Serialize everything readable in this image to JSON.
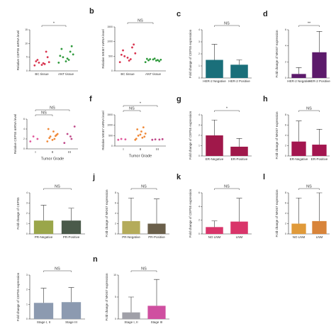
{
  "chart_data": [
    {
      "type": "strip",
      "y_label": "Relative CEP55 mRNA level",
      "categories": [
        "BC tissue",
        "ANT tissue"
      ],
      "colors": [
        "#d8344f",
        "#2f9a3c"
      ],
      "annotations": [
        "*"
      ],
      "ylim": [
        0,
        15
      ],
      "yticks": [
        0,
        5,
        10,
        15
      ],
      "values": [
        [
          2,
          2.5,
          3,
          3.2,
          2.8,
          4,
          5,
          2.2,
          3.5,
          7
        ],
        [
          3,
          4,
          5,
          6,
          4.5,
          8,
          9,
          3.5,
          5.5,
          7
        ]
      ]
    },
    {
      "type": "strip",
      "label": "b",
      "y_label": "Relative MKI67 mRNA level",
      "categories": [
        "BC tissue",
        "ANT tissue"
      ],
      "colors": [
        "#d8344f",
        "#2f9a3c"
      ],
      "annotations": [
        "NS"
      ],
      "ylim": [
        0,
        1500
      ],
      "yticks": [
        0,
        500,
        1000,
        1500
      ],
      "values": [
        [
          300,
          400,
          500,
          600,
          350,
          700,
          900,
          450,
          550,
          800
        ],
        [
          300,
          350,
          400,
          380,
          420,
          360,
          330,
          390,
          410,
          370
        ]
      ]
    },
    {
      "type": "bar",
      "label": "c",
      "y_label": "Fold change of CEP55 expression",
      "categories": [
        "HER-2 Negative",
        "HER-2 Positive"
      ],
      "colors": [
        "#1a6f7a",
        "#1a6f7a"
      ],
      "annotations": [
        "NS"
      ],
      "ylim": [
        0,
        4
      ],
      "yticks": [
        0,
        1,
        2,
        3,
        4
      ],
      "values": [
        1.5,
        1.1
      ],
      "errors": [
        1.3,
        0.4
      ]
    },
    {
      "type": "bar",
      "label": "d",
      "y_label": "Fold change of MKI67 expression",
      "categories": [
        "HER-2 Negative",
        "HER-2 Positive"
      ],
      "colors": [
        "#5c1a6b",
        "#5c1a6b"
      ],
      "annotations": [
        "**"
      ],
      "ylim": [
        0,
        6
      ],
      "yticks": [
        0,
        2,
        4,
        6
      ],
      "values": [
        0.5,
        3.2
      ],
      "errors": [
        0.8,
        2.6
      ]
    },
    {
      "type": "strip",
      "x_label": "Tumor Grade",
      "y_label": "Relative CEP55 mRNA level",
      "categories": [
        "I",
        "II",
        "III"
      ],
      "colors": [
        "#e0569a",
        "#f08a3a",
        "#c04a8a"
      ],
      "annotations": [
        "NS",
        "NS"
      ],
      "ylim": [
        0,
        6
      ],
      "yticks": [
        0,
        2,
        4,
        6
      ],
      "values": [
        [
          1.5,
          2,
          2.5
        ],
        [
          1.5,
          2,
          2.5,
          3,
          3.5,
          2.2,
          2.8,
          1.8,
          4,
          2.6
        ],
        [
          1.2,
          2,
          3,
          4.5,
          2.5
        ]
      ]
    },
    {
      "type": "strip",
      "label": "f",
      "x_label": "Tumor Grade",
      "y_label": "Relative MKI67 mRNA level",
      "categories": [
        "I",
        "II",
        "III"
      ],
      "colors": [
        "#e0569a",
        "#f08a3a",
        "#c04a8a"
      ],
      "annotations": [
        "NS",
        "*"
      ],
      "ylim": [
        0,
        1500
      ],
      "yticks": [
        0,
        500,
        1000,
        1500
      ],
      "values": [
        [
          300,
          320,
          340
        ],
        [
          300,
          400,
          500,
          600,
          700,
          800,
          450,
          550,
          350,
          900
        ],
        [
          300,
          310,
          320,
          330
        ]
      ]
    },
    {
      "type": "bar",
      "label": "g",
      "y_label": "Fold change of CEP55 expression",
      "categories": [
        "ER-Negative",
        "ER-Positive"
      ],
      "colors": [
        "#a0184a",
        "#a0184a"
      ],
      "annotations": [
        "*"
      ],
      "ylim": [
        0,
        4
      ],
      "yticks": [
        0,
        1,
        2,
        3,
        4
      ],
      "values": [
        2,
        0.9
      ],
      "errors": [
        1.5,
        0.8
      ]
    },
    {
      "type": "bar",
      "label": "h",
      "y_label": "Fold change of MKI67 expression",
      "categories": [
        "ER-Negative",
        "ER-Positive"
      ],
      "colors": [
        "#a3154f",
        "#a3154f"
      ],
      "annotations": [
        "NS"
      ],
      "ylim": [
        0,
        8
      ],
      "yticks": [
        0,
        2,
        4,
        6,
        8
      ],
      "values": [
        2.8,
        2.2
      ],
      "errors": [
        4,
        3
      ]
    },
    {
      "type": "bar",
      "y_label": "Fold change of CEP55",
      "categories": [
        "PR-Negative",
        "PR-Positive"
      ],
      "colors": [
        "#9aa64a",
        "#4a5a4a"
      ],
      "annotations": [
        "NS"
      ],
      "ylim": [
        0,
        4
      ],
      "yticks": [
        0,
        1,
        2,
        3,
        4
      ],
      "values": [
        1.3,
        1.3
      ],
      "errors": [
        1.5,
        1.2
      ]
    },
    {
      "type": "bar",
      "label": "j",
      "y_label": "Fold change of MKI67 expression",
      "categories": [
        "PR-Negative",
        "PR-Positive"
      ],
      "colors": [
        "#b4ab5a",
        "#6a5f4a"
      ],
      "annotations": [
        "NS"
      ],
      "ylim": [
        0,
        8
      ],
      "yticks": [
        0,
        2,
        4,
        6,
        8
      ],
      "values": [
        2.5,
        2
      ],
      "errors": [
        4.5,
        4.8
      ]
    },
    {
      "type": "bar",
      "label": "k",
      "y_label": "Fold change of CEP55 expression",
      "categories": [
        "NO LNM",
        "LNM"
      ],
      "colors": [
        "#d9356a",
        "#d9356a"
      ],
      "annotations": [
        "NS"
      ],
      "ylim": [
        0,
        6
      ],
      "yticks": [
        0,
        2,
        4,
        6
      ],
      "values": [
        1,
        1.8
      ],
      "errors": [
        0.9,
        3.4
      ]
    },
    {
      "type": "bar",
      "label": "l",
      "y_label": "Fold change of MKI67 expression",
      "categories": [
        "NO LNM",
        "LNM"
      ],
      "colors": [
        "#e09a3a",
        "#d8843a"
      ],
      "annotations": [
        "NS"
      ],
      "ylim": [
        0,
        8
      ],
      "yticks": [
        0,
        2,
        4,
        6,
        8
      ],
      "values": [
        2,
        2.5
      ],
      "errors": [
        5,
        5.5
      ]
    },
    {
      "type": "bar",
      "y_label": "Fold change of CEP55 expression",
      "categories": [
        "Stage I, II",
        "Stage III"
      ],
      "colors": [
        "#8c9ab0",
        "#8c9ab0"
      ],
      "annotations": [
        "NS"
      ],
      "ylim": [
        0,
        3
      ],
      "yticks": [
        0,
        1,
        2,
        3
      ],
      "values": [
        1.1,
        1.15
      ],
      "errors": [
        1,
        1
      ]
    },
    {
      "type": "bar",
      "label": "n",
      "y_label": "Fold change of MKI67 expression",
      "categories": [
        "Stage I, II",
        "Stage III"
      ],
      "colors": [
        "#a0a0a8",
        "#cf4fa0"
      ],
      "annotations": [
        "NS"
      ],
      "ylim": [
        0,
        10
      ],
      "yticks": [
        0,
        5,
        10
      ],
      "values": [
        1.5,
        3
      ],
      "errors": [
        3.5,
        6
      ]
    }
  ]
}
